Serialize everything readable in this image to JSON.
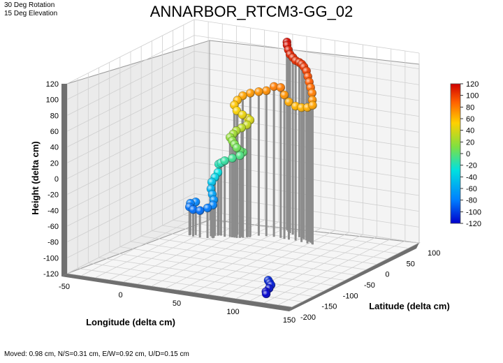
{
  "view": {
    "rotation_label": "30 Deg Rotation",
    "elevation_label": "15 Deg Elevation"
  },
  "status": {
    "text": "Moved: 0.98 cm, N/S=0.31 cm, E/W=0.92 cm, U/D=0.15 cm"
  },
  "chart_data": {
    "type": "scatter",
    "title": "ANNARBOR_RTCM3-GG_02",
    "xlabel": "Longitude (delta cm)",
    "ylabel": "Latitude (delta cm)",
    "zlabel": "Height (delta cm)",
    "xlim": [
      -50,
      150
    ],
    "ylim": [
      -200,
      100
    ],
    "zlim": [
      -120,
      120
    ],
    "x_ticks": [
      "-50",
      "0",
      "50",
      "100",
      "150"
    ],
    "y_ticks": [
      "-200",
      "-150",
      "-100",
      "-50",
      "0",
      "50",
      "100"
    ],
    "z_ticks": [
      "120",
      "100",
      "80",
      "60",
      "40",
      "20",
      "0",
      "-20",
      "-40",
      "-60",
      "-80",
      "-100",
      "-120"
    ],
    "colorbar": {
      "ticks": [
        "120",
        "100",
        "80",
        "60",
        "40",
        "20",
        "0",
        "-20",
        "-40",
        "-60",
        "-80",
        "-100",
        "-120"
      ],
      "range": [
        -120,
        120
      ],
      "colors": [
        "#0000cc",
        "#0080ff",
        "#00e0e0",
        "#80e040",
        "#ffd000",
        "#ff6000",
        "#d00000"
      ]
    },
    "grid": true,
    "stem_color": "#8c8c8c",
    "points": [
      {
        "x": 40,
        "y": 80,
        "z": 116
      },
      {
        "x": 42,
        "y": 75,
        "z": 114
      },
      {
        "x": 45,
        "y": 70,
        "z": 110
      },
      {
        "x": 48,
        "y": 66,
        "z": 106
      },
      {
        "x": 52,
        "y": 62,
        "z": 104
      },
      {
        "x": 56,
        "y": 58,
        "z": 102
      },
      {
        "x": 60,
        "y": 56,
        "z": 101
      },
      {
        "x": 63,
        "y": 54,
        "z": 100
      },
      {
        "x": 66,
        "y": 51,
        "z": 98
      },
      {
        "x": 69,
        "y": 49,
        "z": 94
      },
      {
        "x": 71,
        "y": 47,
        "z": 88
      },
      {
        "x": 73,
        "y": 45,
        "z": 82
      },
      {
        "x": 75,
        "y": 43,
        "z": 76
      },
      {
        "x": 77,
        "y": 41,
        "z": 70
      },
      {
        "x": 78,
        "y": 39,
        "z": 62
      },
      {
        "x": 79,
        "y": 37,
        "z": 56
      },
      {
        "x": 74,
        "y": 38,
        "z": 52
      },
      {
        "x": 68,
        "y": 40,
        "z": 50
      },
      {
        "x": 62,
        "y": 42,
        "z": 50
      },
      {
        "x": 56,
        "y": 42,
        "z": 54
      },
      {
        "x": 52,
        "y": 42,
        "z": 62
      },
      {
        "x": 48,
        "y": 44,
        "z": 70
      },
      {
        "x": 42,
        "y": 44,
        "z": 70
      },
      {
        "x": 36,
        "y": 42,
        "z": 64
      },
      {
        "x": 30,
        "y": 40,
        "z": 62
      },
      {
        "x": 24,
        "y": 36,
        "z": 60
      },
      {
        "x": 18,
        "y": 34,
        "z": 56
      },
      {
        "x": 14,
        "y": 32,
        "z": 50
      },
      {
        "x": 12,
        "y": 30,
        "z": 44
      },
      {
        "x": 15,
        "y": 28,
        "z": 38
      },
      {
        "x": 20,
        "y": 28,
        "z": 34
      },
      {
        "x": 24,
        "y": 30,
        "z": 30
      },
      {
        "x": 26,
        "y": 30,
        "z": 28
      },
      {
        "x": 24,
        "y": 28,
        "z": 22
      },
      {
        "x": 20,
        "y": 26,
        "z": 18
      },
      {
        "x": 16,
        "y": 24,
        "z": 14
      },
      {
        "x": 14,
        "y": 22,
        "z": 10
      },
      {
        "x": 12,
        "y": 20,
        "z": 6
      },
      {
        "x": 14,
        "y": 20,
        "z": 2
      },
      {
        "x": 16,
        "y": 20,
        "z": -2
      },
      {
        "x": 18,
        "y": 20,
        "z": -6
      },
      {
        "x": 20,
        "y": 22,
        "z": -10
      },
      {
        "x": 22,
        "y": 24,
        "z": -12
      },
      {
        "x": 20,
        "y": 22,
        "z": -16
      },
      {
        "x": 14,
        "y": 20,
        "z": -20
      },
      {
        "x": 8,
        "y": 18,
        "z": -24
      },
      {
        "x": 4,
        "y": 20,
        "z": -28
      },
      {
        "x": 2,
        "y": 20,
        "z": -30
      },
      {
        "x": 2,
        "y": 18,
        "z": -40
      },
      {
        "x": 0,
        "y": 16,
        "z": -46
      },
      {
        "x": -2,
        "y": 14,
        "z": -52
      },
      {
        "x": -2,
        "y": 12,
        "z": -60
      },
      {
        "x": 0,
        "y": 10,
        "z": -66
      },
      {
        "x": 2,
        "y": 8,
        "z": -72
      },
      {
        "x": 2,
        "y": 6,
        "z": -78
      },
      {
        "x": -2,
        "y": 4,
        "z": -82
      },
      {
        "x": -8,
        "y": 2,
        "z": -86
      },
      {
        "x": -14,
        "y": 2,
        "z": -86
      },
      {
        "x": -18,
        "y": 4,
        "z": -84
      },
      {
        "x": -18,
        "y": 6,
        "z": -80
      },
      {
        "x": -14,
        "y": 8,
        "z": -78
      },
      {
        "x": 110,
        "y": -150,
        "z": -108
      },
      {
        "x": 112,
        "y": -152,
        "z": -110
      },
      {
        "x": 114,
        "y": -154,
        "z": -112
      },
      {
        "x": 113,
        "y": -156,
        "z": -116
      },
      {
        "x": 111,
        "y": -158,
        "z": -120
      },
      {
        "x": 112,
        "y": -160,
        "z": -122
      }
    ]
  }
}
